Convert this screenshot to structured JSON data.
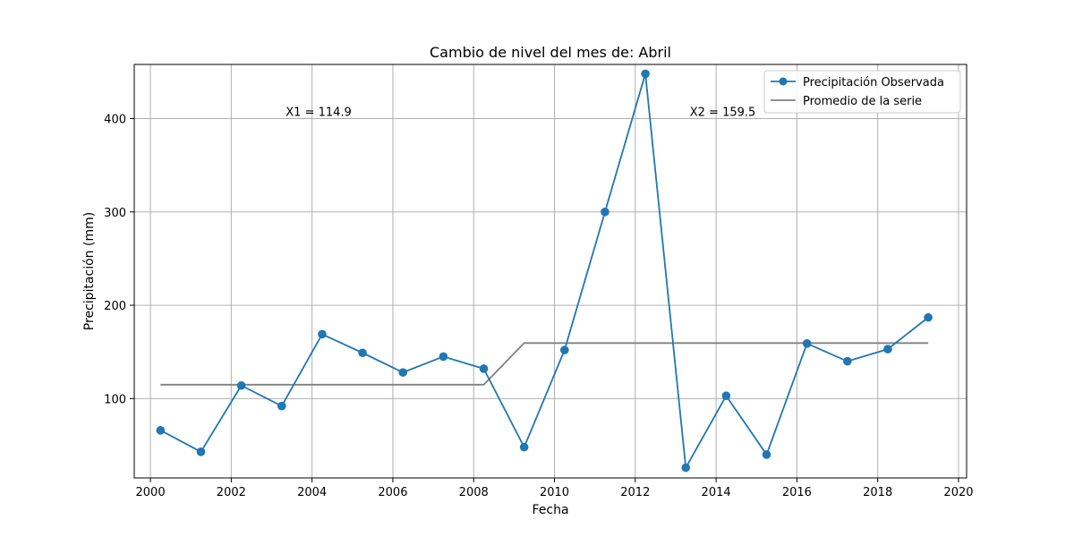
{
  "chart_data": {
    "type": "line",
    "title": "Cambio de nivel del mes de: Abril",
    "xlabel": "Fecha",
    "ylabel": "Precipitación (mm)",
    "xlim": [
      1999.6,
      2020.2
    ],
    "ylim": [
      15,
      458
    ],
    "xticks": [
      2000,
      2002,
      2004,
      2006,
      2008,
      2010,
      2012,
      2014,
      2016,
      2018,
      2020
    ],
    "yticks": [
      100,
      200,
      300,
      400
    ],
    "xtick_labels": [
      "2000",
      "2002",
      "2004",
      "2006",
      "2008",
      "2010",
      "2012",
      "2014",
      "2016",
      "2018",
      "2020"
    ],
    "ytick_labels": [
      "100",
      "200",
      "300",
      "400"
    ],
    "grid": true,
    "legend_position": "top-right",
    "series": [
      {
        "name": "Precipitación Observada",
        "color": "#1f77b4",
        "marker": "circle",
        "x": [
          2000.25,
          2001.25,
          2002.25,
          2003.25,
          2004.25,
          2005.25,
          2006.25,
          2007.25,
          2008.25,
          2009.25,
          2010.25,
          2011.25,
          2012.25,
          2013.25,
          2014.25,
          2015.25,
          2016.25,
          2017.25,
          2018.25,
          2019.25
        ],
        "y": [
          66,
          43,
          114,
          92,
          169,
          149,
          128,
          145,
          132,
          48,
          152,
          300,
          448,
          26,
          103,
          40,
          159,
          140,
          153,
          187
        ]
      },
      {
        "name": "Promedio de la serie",
        "color": "#808080",
        "marker": "none",
        "x": [
          2000.25,
          2001.25,
          2002.25,
          2003.25,
          2004.25,
          2005.25,
          2006.25,
          2007.25,
          2008.25,
          2009.25,
          2010.25,
          2011.25,
          2012.25,
          2013.25,
          2014.25,
          2015.25,
          2016.25,
          2017.25,
          2018.25,
          2019.25
        ],
        "y": [
          114.9,
          114.9,
          114.9,
          114.9,
          114.9,
          114.9,
          114.9,
          114.9,
          114.9,
          159.5,
          159.5,
          159.5,
          159.5,
          159.5,
          159.5,
          159.5,
          159.5,
          159.5,
          159.5,
          159.5
        ]
      }
    ],
    "annotations": [
      {
        "text": "X1 = 114.9",
        "x": 2003.35,
        "y": 403
      },
      {
        "text": "X2 = 159.5",
        "x": 2013.35,
        "y": 403
      }
    ]
  }
}
